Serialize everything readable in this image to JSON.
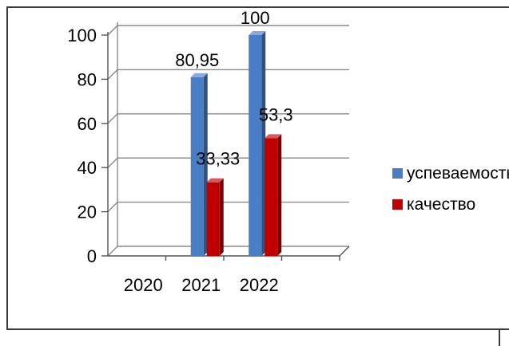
{
  "chart_data": {
    "type": "bar",
    "categories": [
      "2020",
      "2021",
      "2022"
    ],
    "series": [
      {
        "name": "успеваемость",
        "values": [
          null,
          80.95,
          100
        ],
        "labels": [
          "",
          "80,95",
          "100"
        ],
        "color": "#4a7ec4"
      },
      {
        "name": "качество",
        "values": [
          null,
          33.33,
          53.3
        ],
        "labels": [
          "",
          "33,33",
          "53,3"
        ],
        "color": "#c00000"
      }
    ],
    "y_ticks": [
      "0",
      "20",
      "40",
      "60",
      "80",
      "100"
    ],
    "ylim": [
      0,
      100
    ],
    "grid": true,
    "legend_position": "right",
    "style": "3d-column"
  }
}
